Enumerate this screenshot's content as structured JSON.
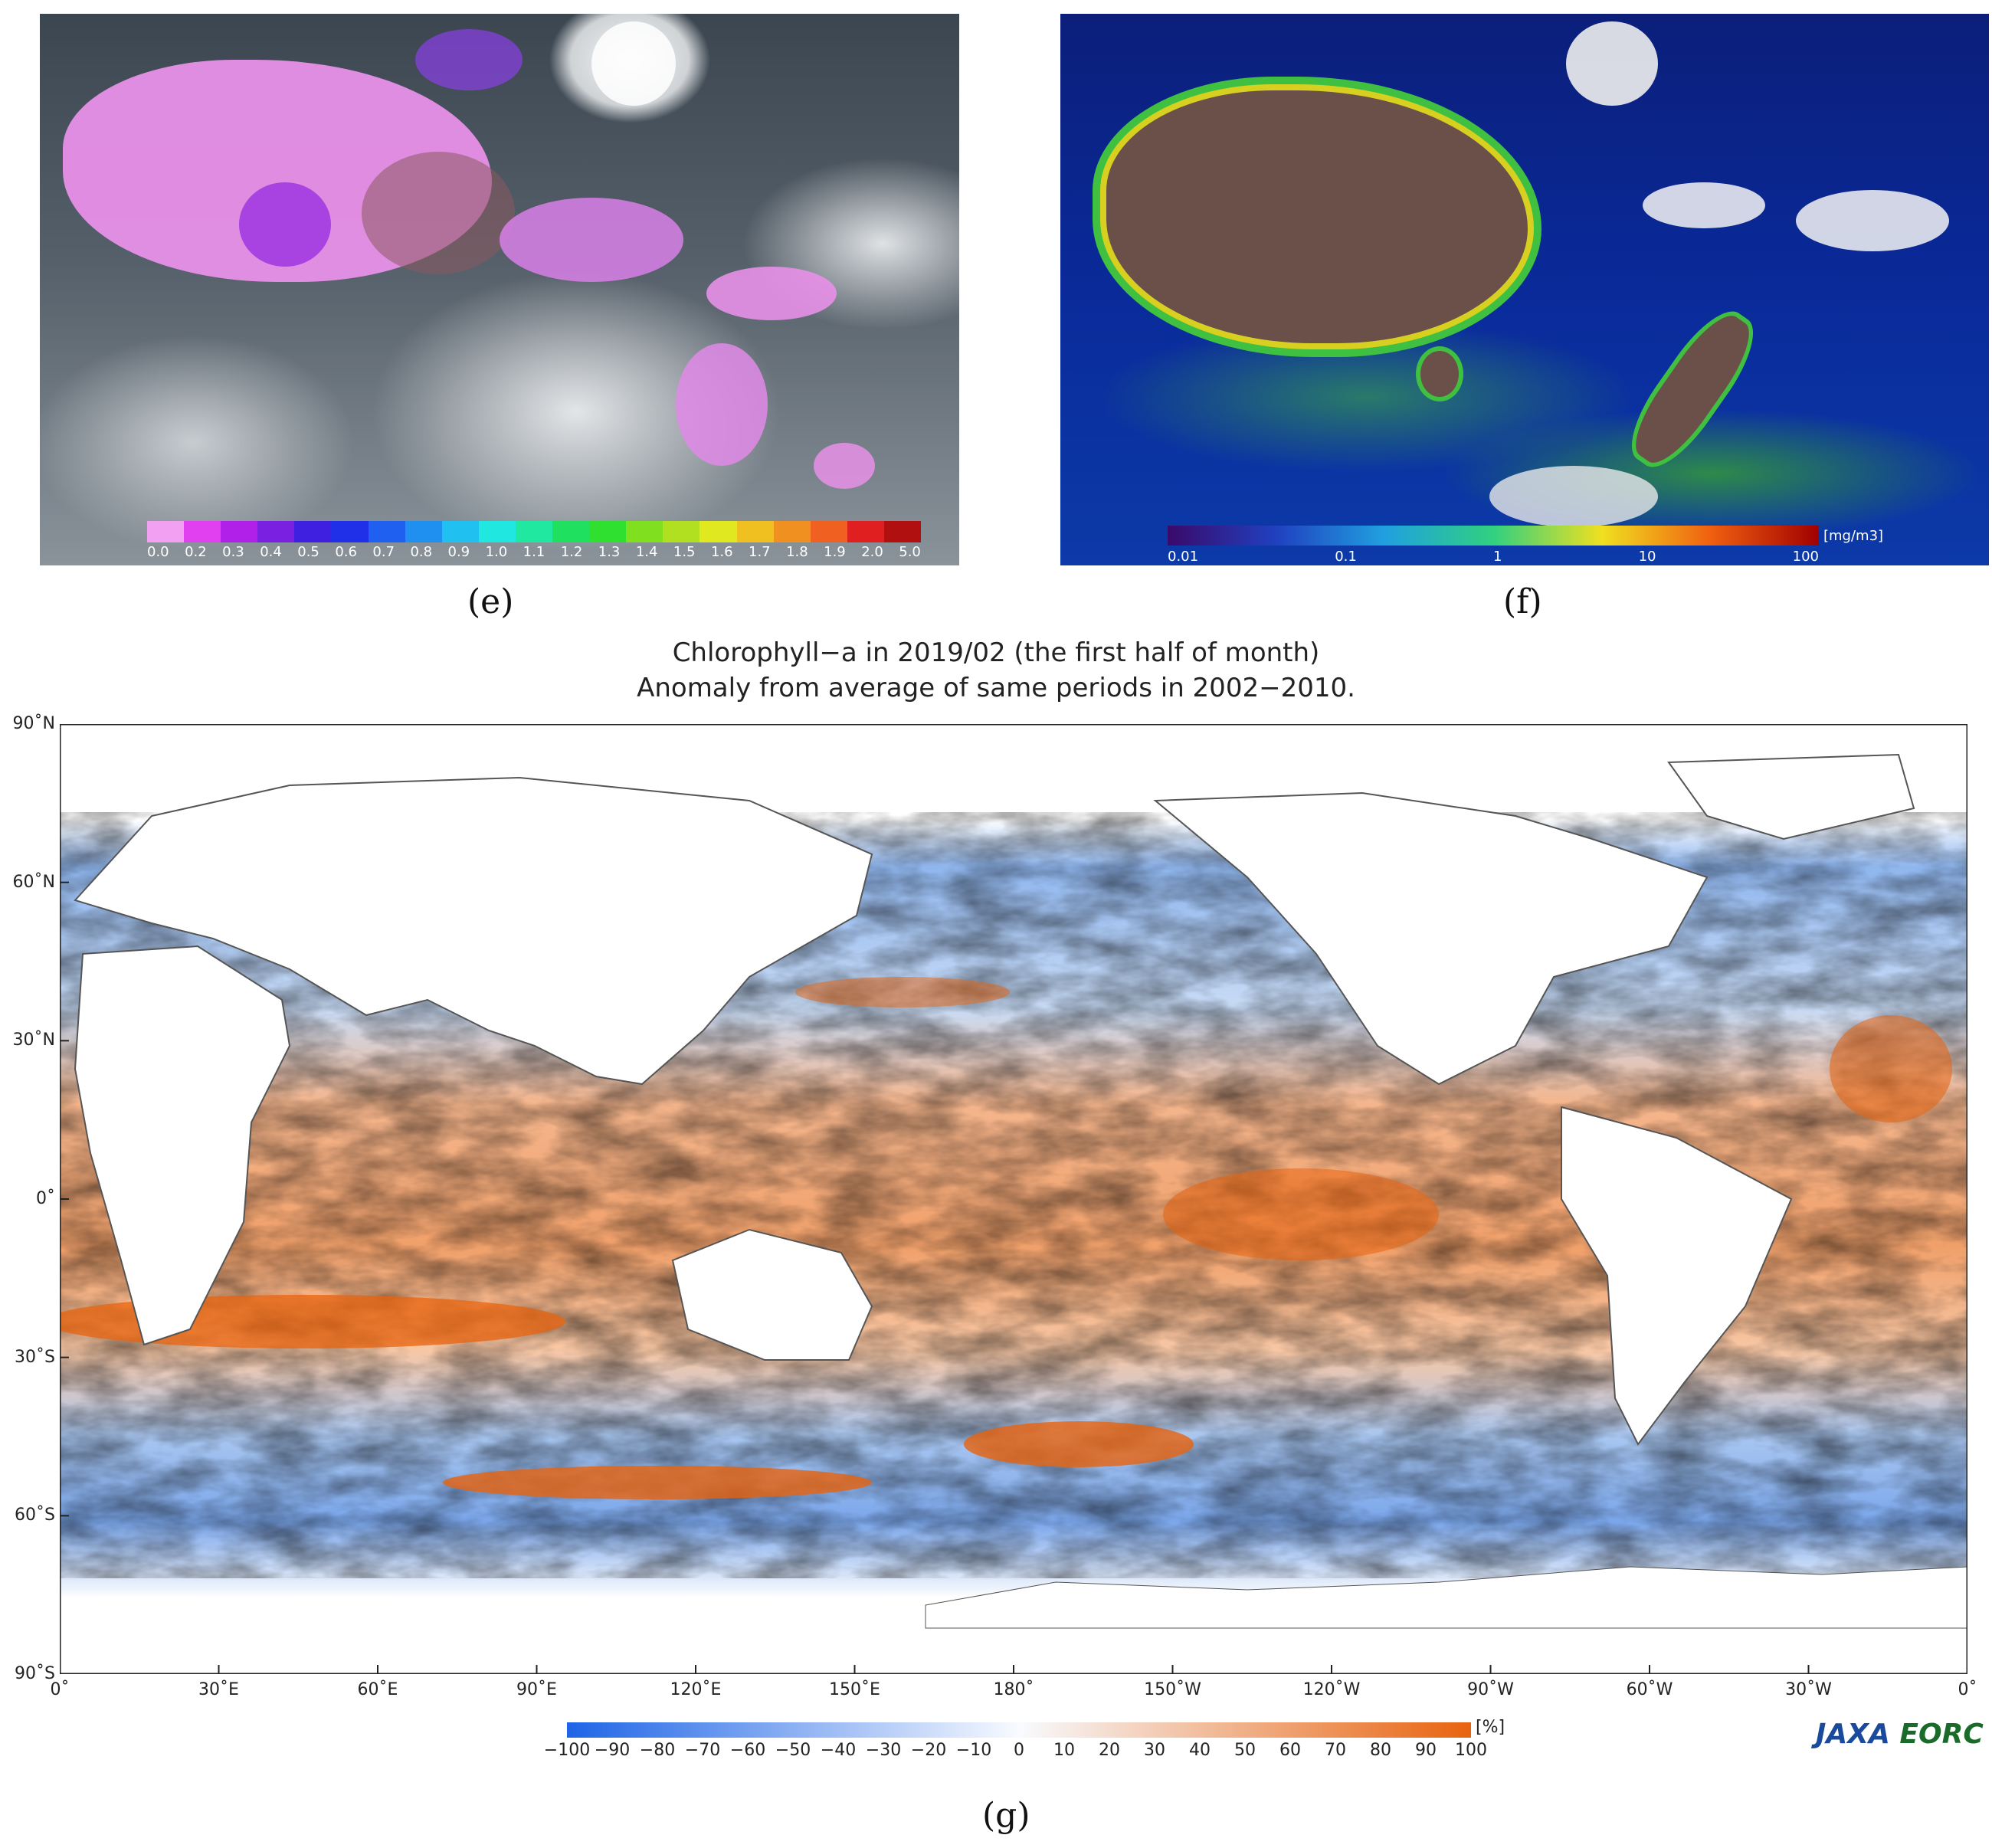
{
  "panel_e": {
    "caption": "(e)",
    "colorbar_labels": [
      "0.0",
      "0.2",
      "0.3",
      "0.4",
      "0.5",
      "0.6",
      "0.7",
      "0.8",
      "0.9",
      "1.0",
      "1.1",
      "1.2",
      "1.3",
      "1.4",
      "1.5",
      "1.6",
      "1.7",
      "1.8",
      "1.9",
      "2.0",
      "5.0"
    ],
    "colorbar_colors": [
      "#f2a0f2",
      "#e040f0",
      "#b020e8",
      "#7a20e0",
      "#4020e0",
      "#2030e8",
      "#2060f0",
      "#2090f0",
      "#20c0f0",
      "#20e8e0",
      "#20e8a0",
      "#20e060",
      "#30e030",
      "#80e020",
      "#b0e020",
      "#e0e820",
      "#f0c020",
      "#f09020",
      "#f06020",
      "#e02020",
      "#b01010"
    ]
  },
  "panel_f": {
    "caption": "(f)",
    "unit": "[mg/m3]",
    "colorbar_labels": [
      "0.01",
      "0.1",
      "1",
      "10",
      "100"
    ],
    "colorbar_colors": [
      "#3a0a6a",
      "#2040c0",
      "#20a0e0",
      "#30d080",
      "#f0e020",
      "#f06010",
      "#a00000"
    ]
  },
  "panel_g": {
    "caption": "(g)",
    "title_line1": "Chlorophyll−a in 2019/02 (the first half of month)",
    "title_line2": "Anomaly from average of same periods in 2002−2010.",
    "lat_labels": [
      "90˚N",
      "60˚N",
      "30˚N",
      "0˚",
      "30˚S",
      "60˚S",
      "90˚S"
    ],
    "lon_labels": [
      "0˚",
      "30˚E",
      "60˚E",
      "90˚E",
      "120˚E",
      "150˚E",
      "180˚",
      "150˚W",
      "120˚W",
      "90˚W",
      "60˚W",
      "30˚W",
      "0˚"
    ],
    "legend_unit": "[%]",
    "legend_labels": [
      "−100",
      "−90",
      "−80",
      "−70",
      "−60",
      "−50",
      "−40",
      "−30",
      "−20",
      "−10",
      "0",
      "10",
      "20",
      "30",
      "40",
      "50",
      "60",
      "70",
      "80",
      "90",
      "100"
    ],
    "legend_colors": [
      "#1e64e6",
      "#f8fbff",
      "#e8630e"
    ],
    "logo_jaxa": "JAXA",
    "logo_eorc": " EORC"
  }
}
